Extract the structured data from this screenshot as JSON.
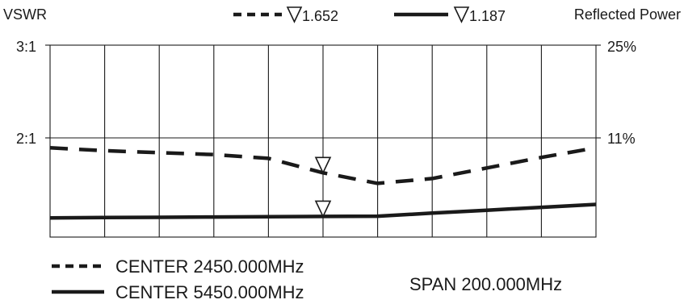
{
  "chart_data": {
    "type": "line",
    "left_axis": {
      "title": "VSWR",
      "ticks": [
        "3:1",
        "2:1"
      ]
    },
    "right_axis": {
      "title": "Reflected Power",
      "ticks": [
        "25%",
        "11%"
      ]
    },
    "marker_values": [
      "1.652",
      "1.187"
    ],
    "marker_symbol": "▽",
    "series": [
      {
        "style": "dashed",
        "label": "CENTER 2450.000MHz",
        "marker_value": "1.652",
        "x": [
          0,
          1,
          2,
          3,
          4,
          5,
          6,
          7,
          8,
          9,
          10
        ],
        "y": [
          1.93,
          1.9,
          1.88,
          1.86,
          1.82,
          1.67,
          1.56,
          1.61,
          1.72,
          1.83,
          1.93
        ]
      },
      {
        "style": "solid",
        "label": "CENTER 5450.000MHz",
        "marker_value": "1.187",
        "x": [
          0,
          1,
          2,
          3,
          4,
          5,
          6,
          7,
          8,
          9,
          10
        ],
        "y": [
          1.2,
          1.203,
          1.206,
          1.209,
          1.212,
          1.215,
          1.218,
          1.25,
          1.28,
          1.31,
          1.34
        ]
      }
    ],
    "ylim": [
      1.0,
      3.0
    ],
    "grid": true,
    "marker_position": 5,
    "footer": {
      "span": "SPAN 200.000MHz"
    }
  }
}
